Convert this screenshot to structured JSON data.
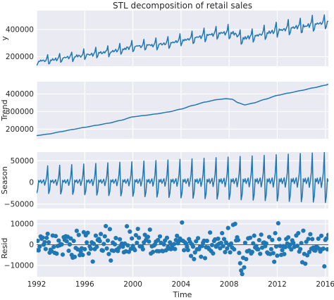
{
  "chart_data": {
    "title": "STL decomposition of retail sales",
    "xlabel": "Time",
    "x_range": [
      1992.0,
      2016.25
    ],
    "x_ticks": [
      1992,
      1996,
      2000,
      2004,
      2008,
      2012,
      2016
    ],
    "x_tick_labels": [
      "1992",
      "1996",
      "2000",
      "2004",
      "2008",
      "2012",
      "2016"
    ],
    "style": {
      "panel_background": "#eaeaf2",
      "grid_color": "#ffffff",
      "line_color": "#1f77b4",
      "marker_color": "#1f77b4",
      "grid": true
    },
    "panels": [
      {
        "ylabel": "y",
        "type": "line",
        "ylim": [
          130000,
          540000
        ],
        "y_ticks": [
          200000,
          400000
        ],
        "y_tick_labels": [
          "200000",
          "400000"
        ]
      },
      {
        "ylabel": "Trend",
        "type": "line",
        "ylim": [
          145000,
          470000
        ],
        "y_ticks": [
          200000,
          300000,
          400000
        ],
        "y_tick_labels": [
          "200000",
          "300000",
          "400000"
        ]
      },
      {
        "ylabel": "Season",
        "type": "line",
        "ylim": [
          -60000,
          70000
        ],
        "y_ticks": [
          -50000,
          0,
          50000
        ],
        "y_tick_labels": [
          "−50000",
          "0",
          "50000"
        ]
      },
      {
        "ylabel": "Resid",
        "type": "scatter",
        "ylim": [
          -15500,
          12000
        ],
        "y_ticks": [
          -10000,
          0,
          10000
        ],
        "y_tick_labels": [
          "−10000",
          "0",
          "10000"
        ]
      }
    ],
    "trend_knots": [
      [
        1992.0,
        163000
      ],
      [
        1993.0,
        172000
      ],
      [
        1994.0,
        185000
      ],
      [
        1995.0,
        198000
      ],
      [
        1996.0,
        210000
      ],
      [
        1997.0,
        222000
      ],
      [
        1998.0,
        234000
      ],
      [
        1999.0,
        250000
      ],
      [
        2000.0,
        270000
      ],
      [
        2001.0,
        278000
      ],
      [
        2002.0,
        287000
      ],
      [
        2003.0,
        298000
      ],
      [
        2004.0,
        314000
      ],
      [
        2005.0,
        335000
      ],
      [
        2006.0,
        354000
      ],
      [
        2007.0,
        368000
      ],
      [
        2007.75,
        373000
      ],
      [
        2008.25,
        370000
      ],
      [
        2008.75,
        350000
      ],
      [
        2009.3,
        338000
      ],
      [
        2010.0,
        348000
      ],
      [
        2011.0,
        370000
      ],
      [
        2012.0,
        392000
      ],
      [
        2013.0,
        406000
      ],
      [
        2014.0,
        420000
      ],
      [
        2015.0,
        435000
      ],
      [
        2016.0,
        450000
      ],
      [
        2016.25,
        455000
      ]
    ],
    "season_pattern_2000": [
      -32000,
      -22000,
      6000,
      1000,
      7000,
      -2000,
      3000,
      8000,
      -8000,
      2000,
      16000,
      48000
    ],
    "season_amplitude_growth_per_year": 0.028,
    "resid_seed": 20160501,
    "resid_sd": 3200,
    "resid_outliers": [
      [
        2008.8,
        -4000
      ],
      [
        2008.9,
        -9000
      ],
      [
        2009.0,
        -12500
      ],
      [
        2009.1,
        -14200
      ],
      [
        2009.25,
        -11000
      ],
      [
        2009.4,
        -7000
      ],
      [
        2008.3,
        9500
      ],
      [
        2008.5,
        10000
      ],
      [
        2012.1,
        10300
      ],
      [
        2015.9,
        -10500
      ],
      [
        2007.9,
        8000
      ],
      [
        2014.1,
        -8500
      ]
    ]
  }
}
